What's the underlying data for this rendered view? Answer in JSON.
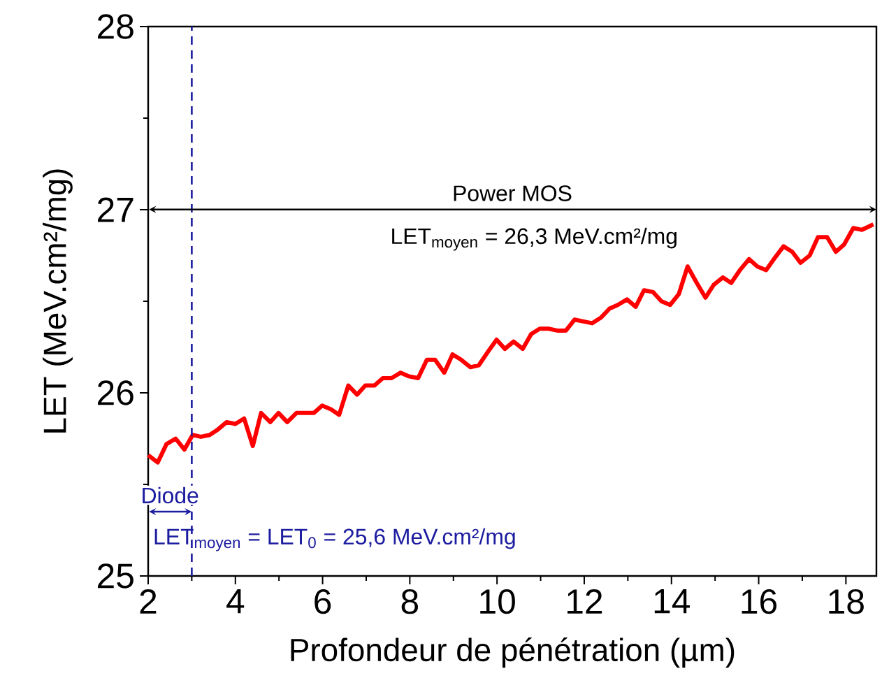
{
  "chart_data": {
    "type": "line",
    "xlabel": "Profondeur de pénétration (µm)",
    "ylabel": "LET (MeV.cm²/mg)",
    "x": [
      2.0,
      2.22,
      2.42,
      2.63,
      2.83,
      3.02,
      3.21,
      3.41,
      3.6,
      3.8,
      4.0,
      4.2,
      4.4,
      4.59,
      4.8,
      4.99,
      5.19,
      5.4,
      5.59,
      5.8,
      5.99,
      6.19,
      6.38,
      6.59,
      6.79,
      6.98,
      7.19,
      7.38,
      7.58,
      7.79,
      7.98,
      8.19,
      8.39,
      8.58,
      8.79,
      8.98,
      9.18,
      9.39,
      9.58,
      9.78,
      9.99,
      10.18,
      10.38,
      10.59,
      10.78,
      10.98,
      11.18,
      11.38,
      11.58,
      11.78,
      11.98,
      12.18,
      12.38,
      12.58,
      12.77,
      12.98,
      13.18,
      13.37,
      13.58,
      13.77,
      13.97,
      14.17,
      14.37,
      14.58,
      14.78,
      14.97,
      15.18,
      15.37,
      15.57,
      15.78,
      15.97,
      16.17,
      16.38,
      16.57,
      16.77,
      16.96,
      17.17,
      17.36,
      17.57,
      17.77,
      17.96,
      18.17,
      18.37,
      18.63
    ],
    "series": [
      {
        "color": "#ff0000",
        "values": [
          25.66,
          25.62,
          25.72,
          25.75,
          25.69,
          25.77,
          25.76,
          25.77,
          25.8,
          25.84,
          25.83,
          25.86,
          25.71,
          25.89,
          25.84,
          25.89,
          25.84,
          25.89,
          25.89,
          25.89,
          25.93,
          25.91,
          25.88,
          26.04,
          25.99,
          26.04,
          26.04,
          26.08,
          26.08,
          26.11,
          26.09,
          26.08,
          26.18,
          26.18,
          26.11,
          26.21,
          26.18,
          26.14,
          26.15,
          26.22,
          26.29,
          26.24,
          26.28,
          26.24,
          26.32,
          26.35,
          26.35,
          26.34,
          26.34,
          26.4,
          26.39,
          26.38,
          26.41,
          26.46,
          26.48,
          26.51,
          26.47,
          26.56,
          26.55,
          26.5,
          26.48,
          26.54,
          26.69,
          26.6,
          26.52,
          26.59,
          26.63,
          26.6,
          26.67,
          26.73,
          26.69,
          26.67,
          26.74,
          26.8,
          26.77,
          26.71,
          26.75,
          26.85,
          26.85,
          26.77,
          26.81,
          26.9,
          26.89,
          26.92
        ]
      }
    ],
    "xlim": [
      2,
      18.7
    ],
    "ylim": [
      25,
      28
    ],
    "xticks": [
      2,
      4,
      6,
      8,
      10,
      12,
      14,
      16,
      18
    ],
    "yticks": [
      25,
      26,
      27,
      28
    ],
    "ref_lines": [
      {
        "axis": "x",
        "value": 3,
        "color": "#1c1ca0",
        "line_style": "dashed"
      }
    ],
    "annotations": [
      "Power MOS",
      "LET$_{moyen}$ = 26,3 MeV.cm²/mg",
      "Diode",
      "LET$_{moyen}$ = LET$_{0}$ = 25,6 MeV.cm²/mg"
    ]
  }
}
